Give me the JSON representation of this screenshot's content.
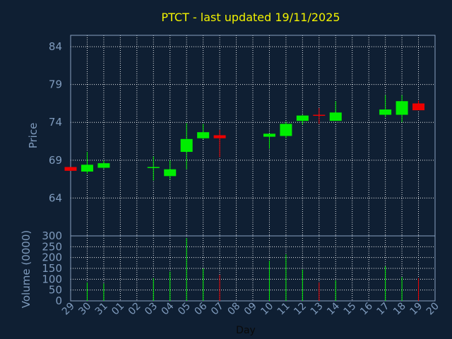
{
  "chart_data": {
    "type": "candlestick",
    "title": "PTCT - last updated 19/11/2025",
    "price_panel": {
      "ylabel": "Price",
      "yticks": [
        64,
        69,
        74,
        79,
        84
      ],
      "ylim": [
        59,
        85.5
      ],
      "grid": true
    },
    "volume_panel": {
      "ylabel": "Volume (0000)",
      "yticks": [
        0,
        50,
        100,
        150,
        200,
        250,
        300
      ],
      "ylim": [
        0,
        300
      ],
      "grid": true
    },
    "xlabel": "Day",
    "x_ticks": [
      "29",
      "30",
      "31",
      "01",
      "02",
      "03",
      "04",
      "05",
      "06",
      "07",
      "08",
      "09",
      "10",
      "11",
      "12",
      "13",
      "14",
      "15",
      "16",
      "17",
      "18",
      "19",
      "20"
    ],
    "colors": {
      "up": "#00ee00",
      "down": "#ee0000"
    },
    "candles": [
      {
        "day": "29",
        "open": 68.1,
        "high": 68.1,
        "low": 67.6,
        "close": 67.6,
        "volume": 0
      },
      {
        "day": "30",
        "open": 67.5,
        "high": 70.1,
        "low": 67.2,
        "close": 68.4,
        "volume": 85
      },
      {
        "day": "31",
        "open": 68.0,
        "high": 69.0,
        "low": 67.9,
        "close": 68.6,
        "volume": 80
      },
      {
        "day": "03",
        "open": 68.0,
        "high": 69.5,
        "low": 66.3,
        "close": 68.1,
        "volume": 105
      },
      {
        "day": "04",
        "open": 66.9,
        "high": 69.0,
        "low": 66.5,
        "close": 67.8,
        "volume": 135
      },
      {
        "day": "05",
        "open": 70.1,
        "high": 73.9,
        "low": 67.8,
        "close": 71.8,
        "volume": 290
      },
      {
        "day": "06",
        "open": 71.9,
        "high": 73.8,
        "low": 71.8,
        "close": 72.7,
        "volume": 150
      },
      {
        "day": "07",
        "open": 72.3,
        "high": 73.0,
        "low": 69.4,
        "close": 71.9,
        "volume": 120
      },
      {
        "day": "10",
        "open": 72.1,
        "high": 72.5,
        "low": 70.5,
        "close": 72.5,
        "volume": 185
      },
      {
        "day": "11",
        "open": 72.2,
        "high": 74.1,
        "low": 71.9,
        "close": 73.8,
        "volume": 215
      },
      {
        "day": "12",
        "open": 74.2,
        "high": 75.0,
        "low": 73.7,
        "close": 74.9,
        "volume": 145
      },
      {
        "day": "13",
        "open": 75.0,
        "high": 75.9,
        "low": 73.8,
        "close": 74.9,
        "volume": 85
      },
      {
        "day": "14",
        "open": 74.2,
        "high": 76.8,
        "low": 74.2,
        "close": 75.3,
        "volume": 95
      },
      {
        "day": "17",
        "open": 75.0,
        "high": 77.6,
        "low": 74.7,
        "close": 75.7,
        "volume": 160
      },
      {
        "day": "18",
        "open": 75.0,
        "high": 77.6,
        "low": 74.0,
        "close": 76.8,
        "volume": 110
      },
      {
        "day": "19",
        "open": 76.5,
        "high": 76.9,
        "low": 75.6,
        "close": 75.6,
        "volume": 105
      }
    ]
  }
}
